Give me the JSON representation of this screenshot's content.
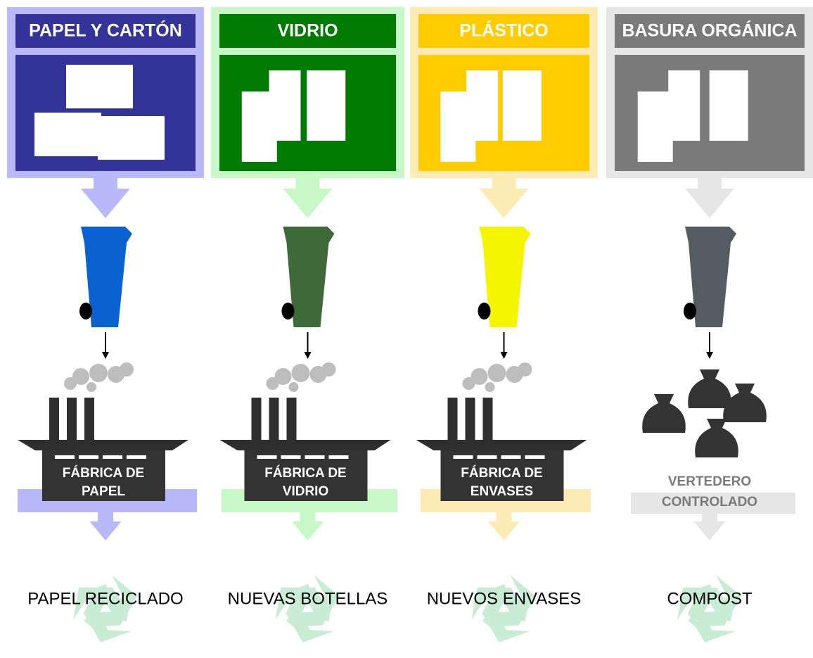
{
  "columns": [
    {
      "title": "PAPEL Y CARTÓN",
      "facility": [
        "FÁBRICA DE",
        "PAPEL"
      ],
      "result": "PAPEL RECICLADO"
    },
    {
      "title": "VIDRIO",
      "facility": [
        "FÁBRICA DE",
        "VIDRIO"
      ],
      "result": "NUEVAS BOTELLAS"
    },
    {
      "title": "PLÁSTICO",
      "facility": [
        "FÁBRICA DE",
        "ENVASES"
      ],
      "result": "NUEVOS ENVASES"
    },
    {
      "title": "BASURA ORGÁNICA",
      "facility": [
        "VERTEDERO",
        "CONTROLADO"
      ],
      "result": "COMPOST"
    }
  ]
}
